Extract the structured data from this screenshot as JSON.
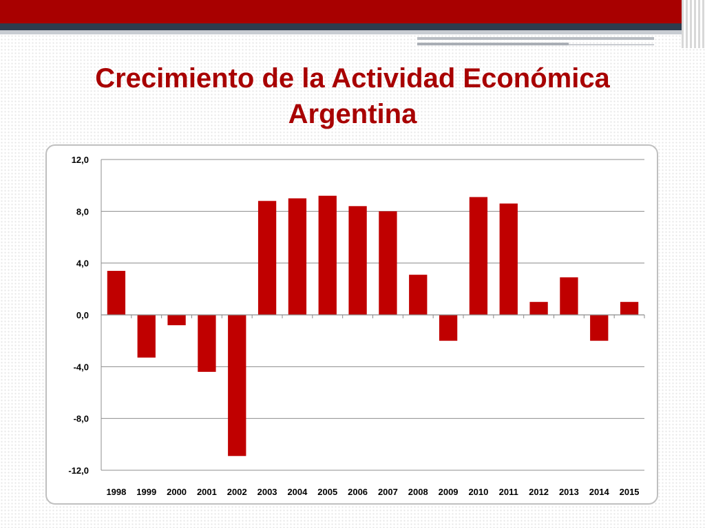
{
  "slide": {
    "title_line1": "Crecimiento de la Actividad Económica",
    "title_line2": "Argentina"
  },
  "colors": {
    "bar": "#c00000",
    "title": "#a80000",
    "grid": "#8c8c8c"
  },
  "chart_data": {
    "type": "bar",
    "title": "",
    "xlabel": "",
    "ylabel": "",
    "categories": [
      "1998",
      "1999",
      "2000",
      "2001",
      "2002",
      "2003",
      "2004",
      "2005",
      "2006",
      "2007",
      "2008",
      "2009",
      "2010",
      "2011",
      "2012",
      "2013",
      "2014",
      "2015"
    ],
    "values": [
      3.4,
      -3.3,
      -0.8,
      -4.4,
      -10.9,
      8.8,
      9.0,
      9.2,
      8.4,
      8.0,
      3.1,
      -2.0,
      9.1,
      8.6,
      1.0,
      2.9,
      -2.0,
      1.0
    ],
    "ylim": [
      -12,
      12
    ],
    "yticks": [
      12,
      8,
      4,
      0,
      -4,
      -8,
      -12
    ],
    "ytick_labels": [
      "12,0",
      "8,0",
      "4,0",
      "0,0",
      "-4,0",
      "-8,0",
      "-12,0"
    ],
    "grid": true,
    "legend": "none"
  }
}
